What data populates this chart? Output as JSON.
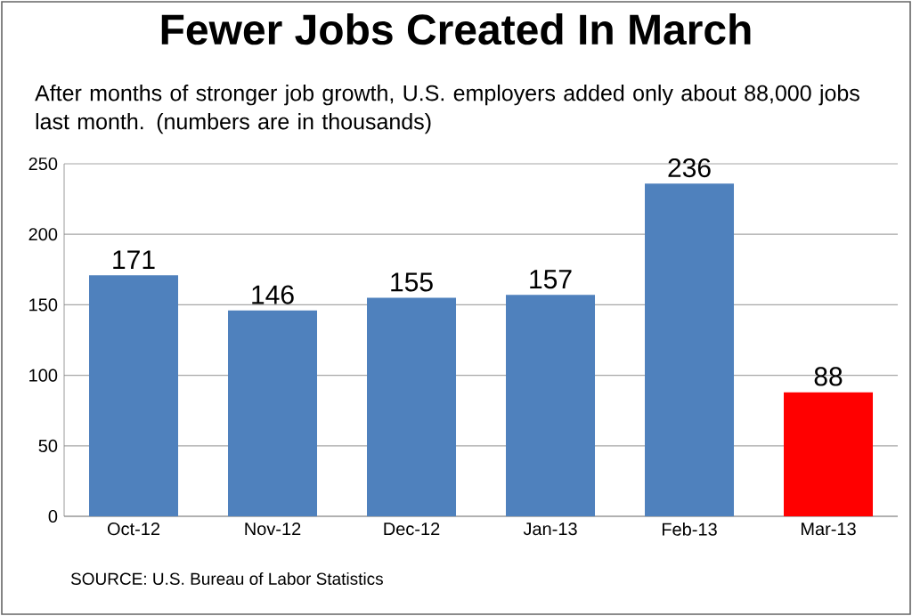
{
  "chart_data": {
    "type": "bar",
    "title": "Fewer Jobs Created In March",
    "subtitle": "After months of stronger job growth, U.S. employers added only about 88,000 jobs last month. (numbers are in thousands)",
    "categories": [
      "Oct-12",
      "Nov-12",
      "Dec-12",
      "Jan-13",
      "Feb-13",
      "Mar-13"
    ],
    "values": [
      171,
      146,
      155,
      157,
      236,
      88
    ],
    "colors": [
      "#4f81bd",
      "#4f81bd",
      "#4f81bd",
      "#4f81bd",
      "#4f81bd",
      "#ff0000"
    ],
    "ylim": [
      0,
      250
    ],
    "yticks": [
      0,
      50,
      100,
      150,
      200,
      250
    ],
    "grid": "y",
    "data_labels": true,
    "annotations": [
      "SOURCE: U.S. Bureau of Labor Statistics"
    ]
  }
}
